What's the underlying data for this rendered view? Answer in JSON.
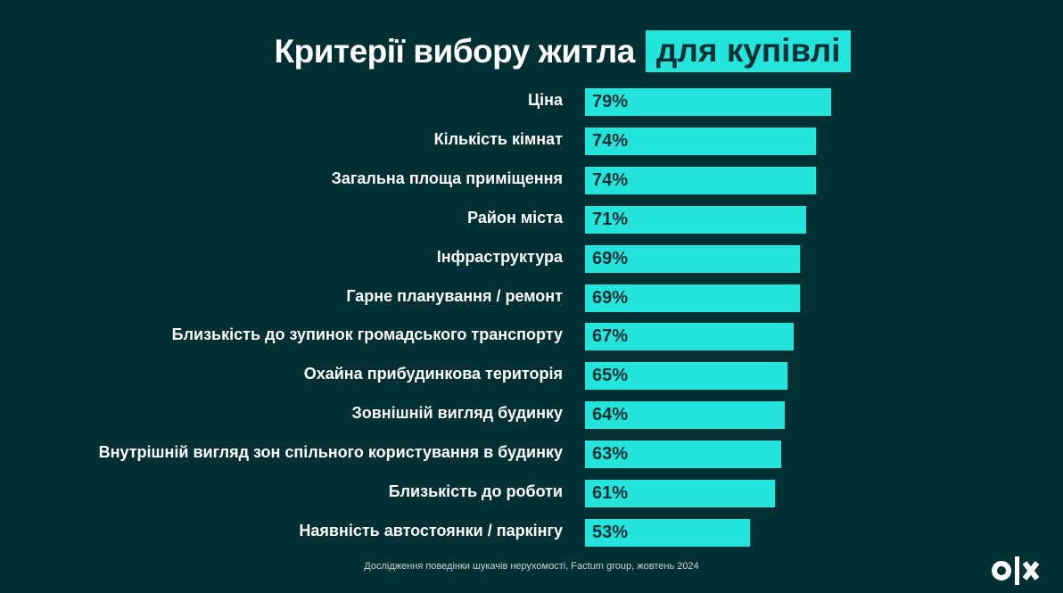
{
  "chart_data": {
    "type": "bar",
    "orientation": "horizontal",
    "title": "Критерії вибору житла",
    "title_highlight": "для купівлі",
    "categories": [
      "Ціна",
      "Кількість кімнат",
      "Загальна площа приміщення",
      "Район міста",
      "Інфраструктура",
      "Гарне планування / ремонт",
      "Близькість до зупинок громадського транспорту",
      "Охайна прибудинкова територія",
      "Зовнішній вигляд будинку",
      "Внутрішній вигляд зон спільного користування в будинку",
      "Близькість до роботи",
      "Наявність автостоянки / паркінгу"
    ],
    "values": [
      79,
      74,
      74,
      71,
      69,
      69,
      67,
      65,
      64,
      63,
      61,
      53
    ],
    "value_labels": [
      "79%",
      "74%",
      "74%",
      "71%",
      "69%",
      "69%",
      "67%",
      "65%",
      "64%",
      "63%",
      "61%",
      "53%"
    ],
    "unit": "%",
    "grid": false,
    "legend": "none",
    "colors": {
      "background": "#002f34",
      "bar": "#23e5db",
      "bar_text": "#002f34",
      "label": "#ffffff"
    }
  },
  "source": "Дослідження поведінки шукачів нерухомості, Factum group, жовтень 2024",
  "logo": "OLX"
}
